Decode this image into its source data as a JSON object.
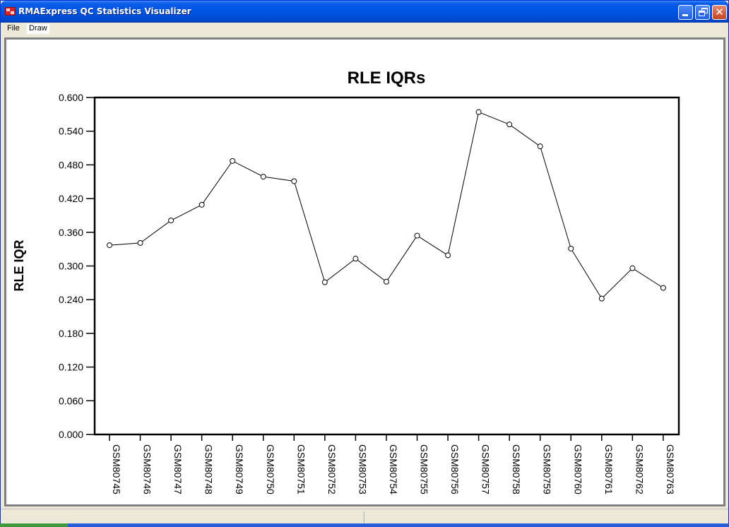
{
  "window": {
    "title": "RMAExpress QC Statistics Visualizer",
    "menu": [
      "File",
      "Draw"
    ]
  },
  "colors": {
    "titlebar": "#0054e3",
    "plot_line": "#000000",
    "background": "#ffffff"
  },
  "chart_data": {
    "type": "line",
    "title": "RLE IQRs",
    "xlabel": "",
    "ylabel": "RLE IQR",
    "ylim": [
      0.0,
      0.6
    ],
    "yticks": [
      "0.000",
      "0.060",
      "0.120",
      "0.180",
      "0.240",
      "0.300",
      "0.360",
      "0.420",
      "0.480",
      "0.540",
      "0.600"
    ],
    "categories": [
      "GSM80745",
      "GSM80746",
      "GSM80747",
      "GSM80748",
      "GSM80749",
      "GSM80750",
      "GSM80751",
      "GSM80752",
      "GSM80753",
      "GSM80754",
      "GSM80755",
      "GSM80756",
      "GSM80757",
      "GSM80758",
      "GSM80759",
      "GSM80760",
      "GSM80761",
      "GSM80762",
      "GSM80763"
    ],
    "values": [
      0.337,
      0.341,
      0.381,
      0.409,
      0.487,
      0.459,
      0.451,
      0.271,
      0.313,
      0.272,
      0.354,
      0.319,
      0.574,
      0.552,
      0.513,
      0.331,
      0.242,
      0.296,
      0.261
    ],
    "grid": false,
    "markers": "open-circle"
  }
}
